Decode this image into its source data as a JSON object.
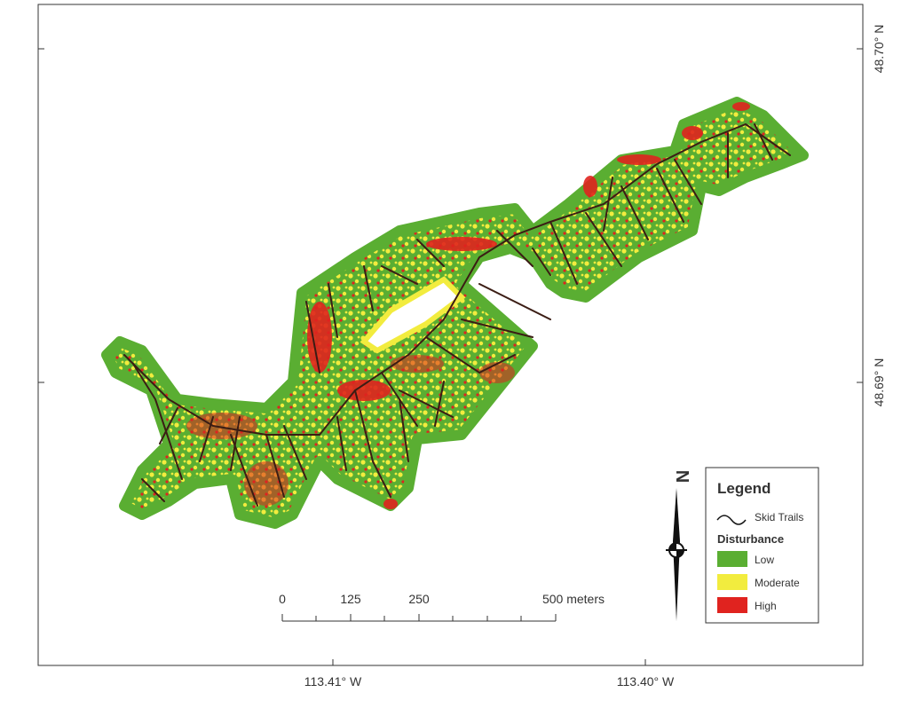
{
  "axes": {
    "bottom": [
      "113.41° W",
      "113.40° W"
    ],
    "right": [
      "48.70° N",
      "48.69° N"
    ]
  },
  "north_arrow": "N",
  "scale_bar": [
    "0",
    "125",
    "250",
    "500 meters"
  ],
  "legend": {
    "title": "Legend",
    "trails": "Skid Trails",
    "subtitle": "Disturbance",
    "items": [
      {
        "label": "Low",
        "color": "#5aae32"
      },
      {
        "label": "Moderate",
        "color": "#f2ec3e"
      },
      {
        "label": "High",
        "color": "#e0231f"
      }
    ]
  }
}
